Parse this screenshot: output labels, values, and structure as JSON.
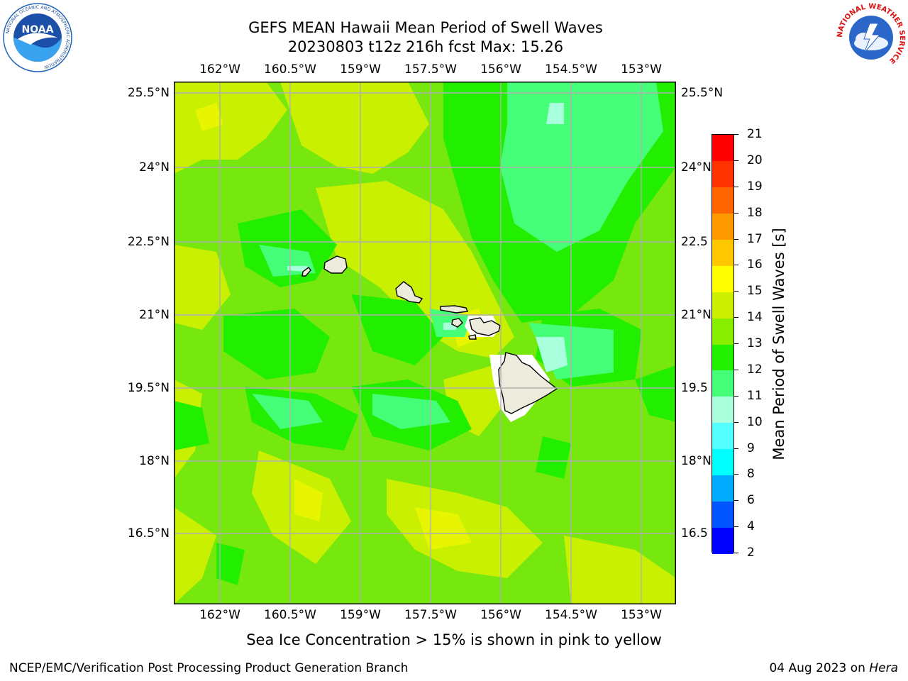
{
  "header": {
    "title": "GEFS MEAN Hawaii Mean Period of Swell Waves",
    "subtitle": "20230803 t12z 216h fcst   Max: 15.26"
  },
  "map": {
    "lon_labels": [
      "162°W",
      "160.5°W",
      "159°W",
      "157.5°W",
      "156°W",
      "154.5°W",
      "153°W"
    ],
    "lat_labels": [
      "25.5°N",
      "24°N",
      "22.5°N",
      "21°N",
      "19.5°N",
      "18°N",
      "16.5°N"
    ],
    "right_lat_labels": [
      "25.5°N",
      "24°N",
      "22.5",
      "21°N",
      "19.5",
      "18°N",
      "16.5"
    ],
    "base_color": "#77e80d",
    "land_color": "#ecebdc",
    "grid_color": "#b0b0b0"
  },
  "colorbar": {
    "title": "Mean Period of Swell Waves [s]",
    "labels": [
      "2",
      "4",
      "6",
      "8",
      "9",
      "10",
      "11",
      "12",
      "13",
      "14",
      "15",
      "16",
      "17",
      "18",
      "19",
      "20",
      "21"
    ],
    "colors": [
      "#0000ff",
      "#0055ff",
      "#00aaff",
      "#00ffff",
      "#55ffff",
      "#aaffdd",
      "#44ff77",
      "#22ee00",
      "#88ee00",
      "#ccf000",
      "#ffff00",
      "#ffc800",
      "#ff9900",
      "#ff6600",
      "#ff3300",
      "#ff0000"
    ]
  },
  "note": "Sea Ice Concentration > 15% is shown in pink to yellow",
  "footer": {
    "left": "NCEP/EMC/Verification Post Processing Product Generation Branch",
    "date": "04 Aug 2023 on",
    "host": "Hera"
  },
  "logos": {
    "noaa_text": "NOAA",
    "noaa_ring": "NATIONAL OCEANIC AND ATMOSPHERIC ADMINISTRATION",
    "noaa_ring_bottom": "U.S. DEPARTMENT OF COMMERCE",
    "nws_ring": "NATIONAL WEATHER SERVICE"
  }
}
